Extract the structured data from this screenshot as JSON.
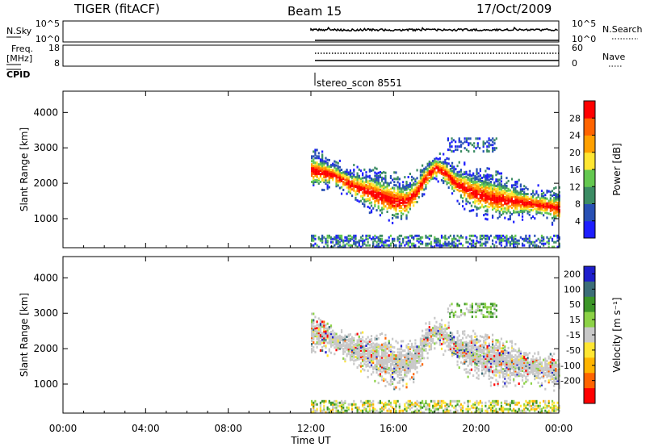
{
  "header": {
    "title_left": "TIGER (fitACF)",
    "title_center": "Beam 15",
    "title_right": "17/Oct/2009"
  },
  "nsky_panel": {
    "label": "N.Sky",
    "tick_top": "10^5",
    "tick_bottom": "10^0",
    "right_label": "N.Search",
    "right_tick_top": "10^5",
    "right_tick_bottom": "10^0"
  },
  "freq_panel": {
    "label_line1": "Freq.",
    "label_line2": "[MHz]",
    "tick_top": "18",
    "tick_bottom": "8",
    "right_label": "Nave",
    "right_tick_top": "60",
    "right_tick_bottom": "0"
  },
  "cpid": {
    "label": "CPID",
    "value": "stereo_scon 8551"
  },
  "colors": {
    "power_scale": [
      "#1e1eff",
      "#2850b4",
      "#3c8c64",
      "#64c850",
      "#ffe632",
      "#ffa000",
      "#ff6400",
      "#ff0000"
    ],
    "velocity_scale": [
      "#1e1ecc",
      "#3c6e78",
      "#3c9628",
      "#8cd246",
      "#c8c8c8",
      "#ffe632",
      "#ffb400",
      "#ff6400",
      "#ff0000"
    ]
  },
  "chart_data": [
    {
      "type": "heatmap",
      "name": "power",
      "xlabel": "",
      "ylabel": "Slant Range [km]",
      "x_ticks": [
        "00:00",
        "04:00",
        "08:00",
        "12:00",
        "16:00",
        "20:00",
        "00:00"
      ],
      "y_ticks": [
        "1000",
        "2000",
        "3000",
        "4000"
      ],
      "ylim": [
        180,
        4600
      ],
      "xlim_hours": [
        0,
        24
      ],
      "colorbar_label": "Power [dB]",
      "colorbar_ticks": [
        "4",
        "8",
        "12",
        "16",
        "20",
        "24",
        "28"
      ],
      "data_start_hour": 12,
      "backscatter_centre_km": [
        [
          12,
          2450
        ],
        [
          13,
          2300
        ],
        [
          14,
          2000
        ],
        [
          15,
          1800
        ],
        [
          16,
          1600
        ],
        [
          16.5,
          1550
        ],
        [
          17,
          1750
        ],
        [
          17.5,
          2200
        ],
        [
          18,
          2500
        ],
        [
          18.5,
          2350
        ],
        [
          19,
          2050
        ],
        [
          20,
          1800
        ],
        [
          21,
          1650
        ],
        [
          22,
          1550
        ],
        [
          23,
          1450
        ],
        [
          24,
          1350
        ]
      ]
    },
    {
      "type": "heatmap",
      "name": "velocity",
      "xlabel": "Time UT",
      "ylabel": "Slant Range [km]",
      "x_ticks": [
        "00:00",
        "04:00",
        "08:00",
        "12:00",
        "16:00",
        "20:00",
        "00:00"
      ],
      "y_ticks": [
        "1000",
        "2000",
        "3000",
        "4000"
      ],
      "ylim": [
        180,
        4600
      ],
      "xlim_hours": [
        0,
        24
      ],
      "colorbar_label": "Velocity [m s⁻¹]",
      "colorbar_ticks": [
        "200",
        "100",
        "50",
        "15",
        "-15",
        "-50",
        "-100",
        "-200"
      ],
      "data_start_hour": 12
    }
  ]
}
